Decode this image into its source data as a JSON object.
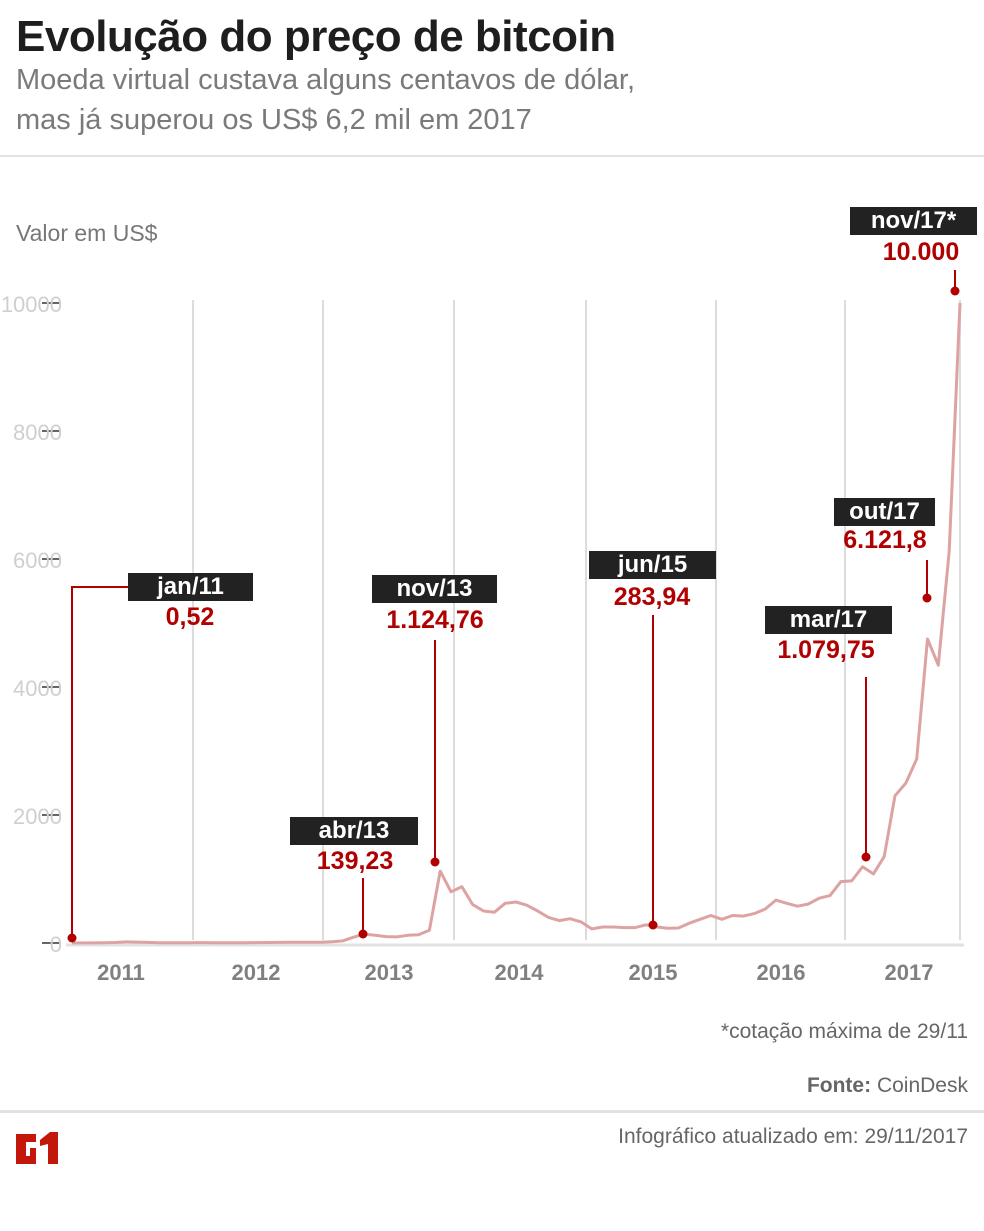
{
  "header": {
    "title": "Evolução do preço de bitcoin",
    "subtitle_line1": "Moeda virtual custava alguns centavos de dólar,",
    "subtitle_line2": "mas já superou os US$ 6,2 mil em 2017"
  },
  "chart_data": {
    "type": "line",
    "ylabel": "Valor em US$",
    "ylim": [
      0,
      10000
    ],
    "yticks": [
      "0",
      "2000",
      "4000",
      "6000",
      "8000",
      "10000"
    ],
    "xticks": [
      "2011",
      "2012",
      "2013",
      "2014",
      "2015",
      "2016",
      "2017"
    ],
    "x_start": "2011-01",
    "x_end": "2017-11",
    "grid": "vertical",
    "line_color": "#dda3a3",
    "accent_color": "#b00000",
    "values": [
      0.5,
      1,
      1,
      3,
      8,
      17,
      14,
      10,
      5,
      3,
      3,
      4,
      6,
      5,
      5,
      5,
      5,
      6,
      8,
      10,
      12,
      11,
      11,
      13,
      20,
      33,
      90,
      139,
      120,
      100,
      95,
      120,
      130,
      200,
      1124,
      800,
      880,
      600,
      500,
      480,
      620,
      640,
      590,
      500,
      400,
      350,
      380,
      330,
      220,
      250,
      250,
      240,
      240,
      284,
      250,
      230,
      235,
      310,
      370,
      430,
      370,
      430,
      420,
      460,
      530,
      670,
      620,
      575,
      610,
      700,
      740,
      960,
      970,
      1190,
      1079,
      1350,
      2300,
      2500,
      2875,
      4750,
      4340,
      6121,
      10000
    ],
    "annotations": [
      {
        "label": "jan/11",
        "value": "0,52",
        "month_index": 0
      },
      {
        "label": "abr/13",
        "value": "139,23",
        "month_index": 27
      },
      {
        "label": "nov/13",
        "value": "1.124,76",
        "month_index": 34
      },
      {
        "label": "jun/15",
        "value": "283,94",
        "month_index": 53
      },
      {
        "label": "mar/17",
        "value": "1.079,75",
        "month_index": 74
      },
      {
        "label": "out/17",
        "value": "6.121,8",
        "month_index": 81
      },
      {
        "label": "nov/17*",
        "value": "10.000",
        "month_index": 82
      }
    ]
  },
  "footer": {
    "note": "*cotação máxima de 29/11",
    "source_label": "Fonte:",
    "source": "CoinDesk",
    "updated": "Infográfico atualizado em: 29/11/2017",
    "logo_text": "G1"
  }
}
